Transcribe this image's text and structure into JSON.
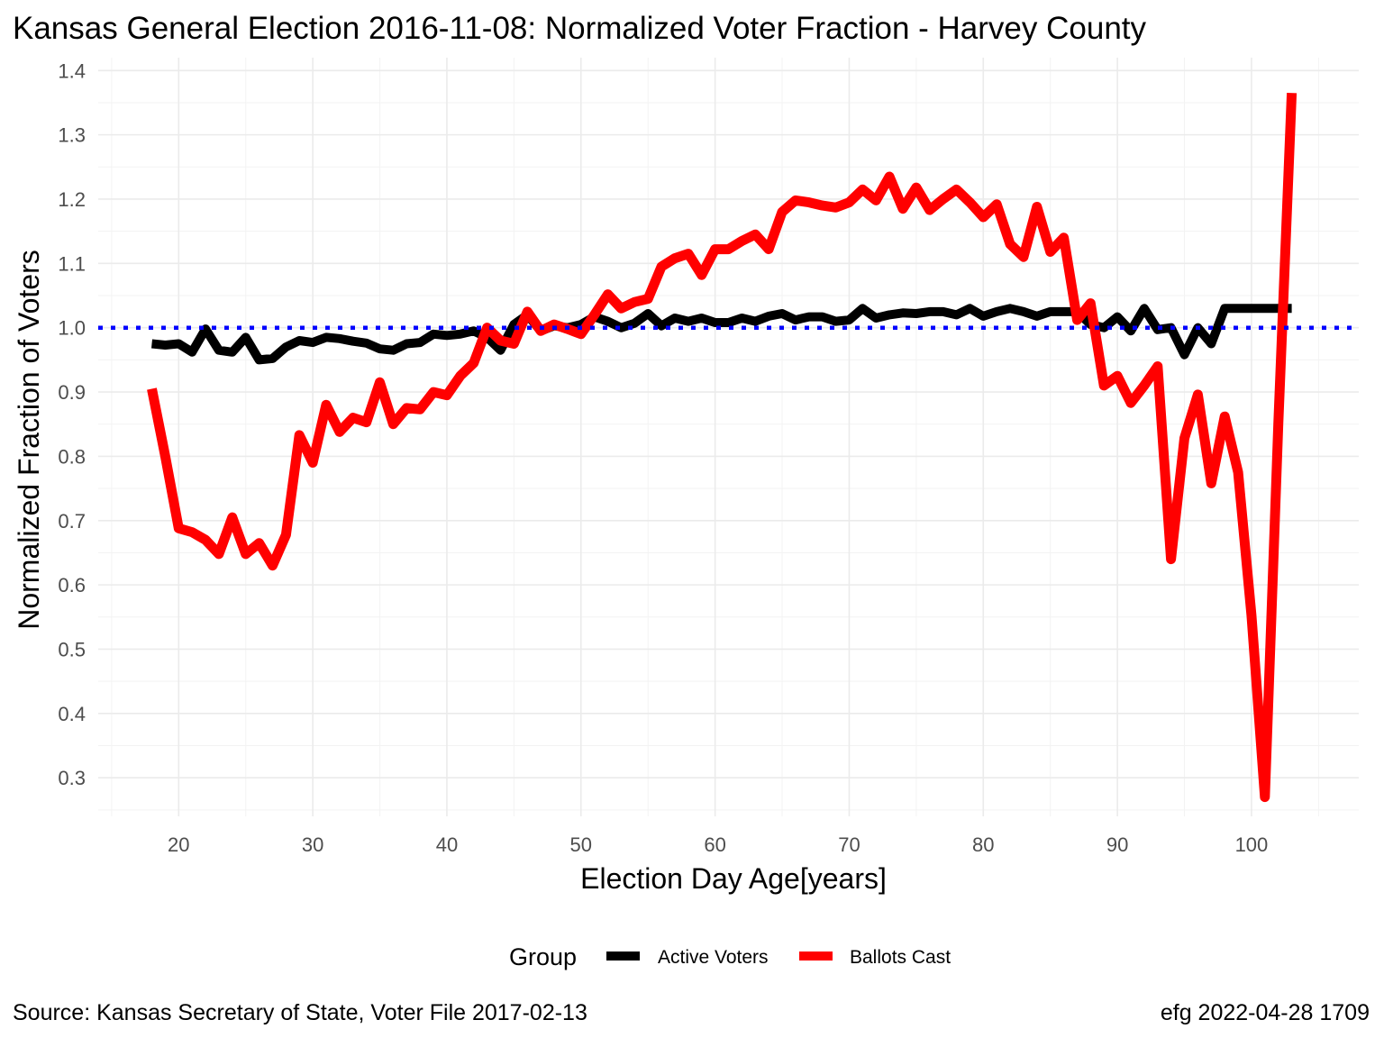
{
  "chart_data": {
    "type": "line",
    "title": "Kansas General Election 2016-11-08:  Normalized Voter Fraction - Harvey County",
    "xlabel": "Election Day Age[years]",
    "ylabel": "Normalized Fraction of Voters",
    "xlim": [
      14,
      108
    ],
    "ylim": [
      0.24,
      1.42
    ],
    "x_ticks": [
      20,
      30,
      40,
      50,
      60,
      70,
      80,
      90,
      100
    ],
    "x_tick_labels": [
      "20",
      "30",
      "40",
      "50",
      "60",
      "70",
      "80",
      "90",
      "100"
    ],
    "y_ticks": [
      0.3,
      0.4,
      0.5,
      0.6,
      0.7,
      0.8,
      0.9,
      1.0,
      1.1,
      1.2,
      1.3,
      1.4
    ],
    "y_tick_labels": [
      "0.3",
      "0.4",
      "0.5",
      "0.6",
      "0.7",
      "0.8",
      "0.9",
      "1.0",
      "1.1",
      "1.2",
      "1.3",
      "1.4"
    ],
    "grid": true,
    "reference_line": {
      "y": 1.0,
      "color": "#0000ff",
      "style": "dotted"
    },
    "legend": {
      "title": "Group",
      "position": "bottom",
      "entries": [
        {
          "label": "Active Voters",
          "color": "#000000"
        },
        {
          "label": "Ballots Cast",
          "color": "#ff0000"
        }
      ]
    },
    "x": [
      18,
      19,
      20,
      21,
      22,
      23,
      24,
      25,
      26,
      27,
      28,
      29,
      30,
      31,
      32,
      33,
      34,
      35,
      36,
      37,
      38,
      39,
      40,
      41,
      42,
      43,
      44,
      45,
      46,
      47,
      48,
      49,
      50,
      51,
      52,
      53,
      54,
      55,
      56,
      57,
      58,
      59,
      60,
      61,
      62,
      63,
      64,
      65,
      66,
      67,
      68,
      69,
      70,
      71,
      72,
      73,
      74,
      75,
      76,
      77,
      78,
      79,
      80,
      81,
      82,
      83,
      84,
      85,
      86,
      87,
      88,
      89,
      90,
      91,
      92,
      93,
      94,
      95,
      96,
      97,
      98,
      99,
      100,
      101,
      102,
      103
    ],
    "series": [
      {
        "name": "Active Voters",
        "color": "#000000",
        "values": [
          0.975,
          0.973,
          0.975,
          0.962,
          0.998,
          0.965,
          0.962,
          0.985,
          0.95,
          0.952,
          0.97,
          0.98,
          0.977,
          0.985,
          0.983,
          0.979,
          0.976,
          0.967,
          0.965,
          0.975,
          0.977,
          0.99,
          0.988,
          0.99,
          0.995,
          0.985,
          0.965,
          1.005,
          1.02,
          0.995,
          1.003,
          1.0,
          1.005,
          1.017,
          1.01,
          1.0,
          1.007,
          1.022,
          1.003,
          1.015,
          1.01,
          1.015,
          1.008,
          1.008,
          1.015,
          1.01,
          1.018,
          1.022,
          1.012,
          1.017,
          1.017,
          1.01,
          1.012,
          1.03,
          1.015,
          1.02,
          1.023,
          1.022,
          1.025,
          1.025,
          1.02,
          1.03,
          1.018,
          1.025,
          1.03,
          1.025,
          1.018,
          1.025,
          1.025,
          1.025,
          1.005,
          1.0,
          1.017,
          0.995,
          1.03,
          0.997,
          1.0,
          0.958,
          1.0,
          0.975,
          1.03,
          1.03,
          1.03,
          1.03,
          1.03,
          1.03
        ]
      },
      {
        "name": "Ballots Cast",
        "color": "#ff0000",
        "values": [
          0.905,
          0.8,
          0.688,
          0.682,
          0.67,
          0.648,
          0.705,
          0.648,
          0.665,
          0.63,
          0.678,
          0.833,
          0.79,
          0.88,
          0.838,
          0.86,
          0.853,
          0.915,
          0.85,
          0.875,
          0.873,
          0.9,
          0.895,
          0.925,
          0.945,
          1.0,
          0.98,
          0.975,
          1.025,
          0.995,
          1.005,
          0.998,
          0.99,
          1.02,
          1.052,
          1.03,
          1.04,
          1.045,
          1.095,
          1.108,
          1.115,
          1.082,
          1.122,
          1.122,
          1.135,
          1.145,
          1.122,
          1.18,
          1.198,
          1.195,
          1.19,
          1.187,
          1.195,
          1.215,
          1.198,
          1.235,
          1.185,
          1.218,
          1.183,
          1.2,
          1.215,
          1.195,
          1.172,
          1.192,
          1.13,
          1.11,
          1.188,
          1.118,
          1.14,
          1.012,
          1.038,
          0.91,
          0.925,
          0.883,
          0.91,
          0.94,
          0.64,
          0.828,
          0.896,
          0.758,
          0.862,
          0.775,
          0.553,
          0.27,
          0.85,
          1.365
        ]
      }
    ]
  },
  "caption_left": "Source:  Kansas Secretary of State, Voter File  2017-02-13",
  "caption_right": "efg 2022-04-28 1709"
}
